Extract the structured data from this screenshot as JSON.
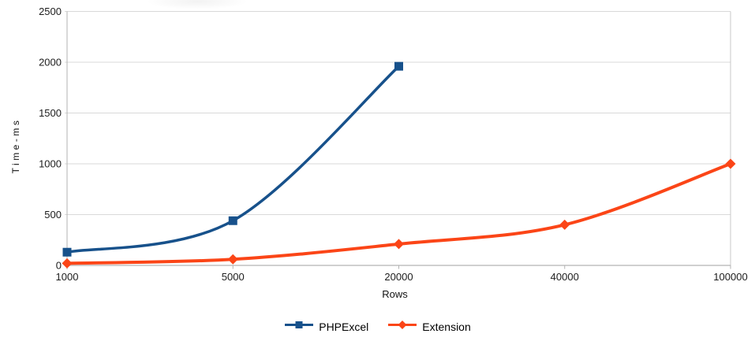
{
  "chart_data": {
    "type": "line",
    "title": "",
    "xlabel": "Rows",
    "ylabel": "Time-ms",
    "categories": [
      "1000",
      "5000",
      "20000",
      "40000",
      "100000"
    ],
    "y_ticks": [
      0,
      500,
      1000,
      1500,
      2000,
      2500
    ],
    "ylim": [
      0,
      2500
    ],
    "grid": "horizontal-only",
    "smooth_lines": true,
    "legend_position": "bottom-center",
    "series": [
      {
        "name": "PHPExcel",
        "color": "#17518b",
        "marker": "square",
        "values": [
          130,
          440,
          1960,
          null,
          null
        ]
      },
      {
        "name": "Extension",
        "color": "#fb4517",
        "marker": "diamond",
        "values": [
          20,
          60,
          210,
          400,
          1000
        ]
      }
    ]
  },
  "styles": {
    "background": "#ffffff",
    "gridline_color": "#d9d9d9",
    "plot_border_color": "#c9c9c9",
    "axis_color": "#b3b3b3",
    "tick_label_color": "#1c1c1c",
    "axis_title_color": "#111111",
    "legend_text_color": "#000000"
  }
}
